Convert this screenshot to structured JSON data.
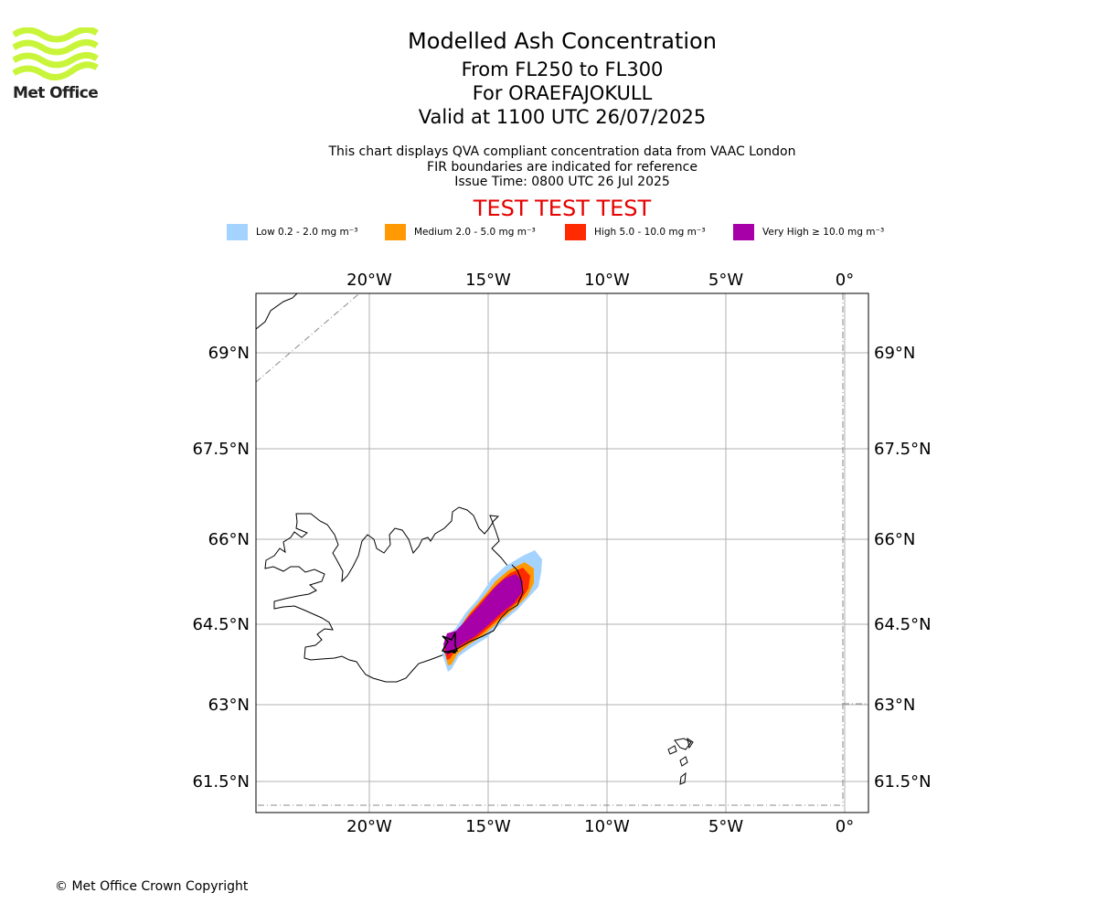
{
  "logo": {
    "text": "Met Office"
  },
  "header": {
    "title": "Modelled Ash Concentration",
    "levels": "From FL250 to FL300",
    "volcano": "For ORAEFAJOKULL",
    "valid": "Valid at 1100 UTC 26/07/2025"
  },
  "subtitle": {
    "line1": "This chart displays QVA compliant concentration data from VAAC London",
    "line2": "FIR boundaries are indicated for reference",
    "line3": "Issue Time: 0800 UTC 26 Jul 2025"
  },
  "test_banner": "TEST TEST TEST",
  "legend": [
    {
      "label": "Low 0.2 - 2.0 mg m⁻³",
      "color": "#a5d3ff"
    },
    {
      "label": "Medium 2.0 - 5.0 mg m⁻³",
      "color": "#ff9a05"
    },
    {
      "label": "High 5.0 - 10.0 mg m⁻³",
      "color": "#ff2a00"
    },
    {
      "label": "Very High ≥ 10.0 mg m⁻³",
      "color": "#a800a8"
    }
  ],
  "map": {
    "lon_ticks": [
      "20°W",
      "15°W",
      "10°W",
      "5°W",
      "0°"
    ],
    "lat_ticks": [
      "69°N",
      "67.5°N",
      "66°N",
      "64.5°N",
      "63°N",
      "61.5°N"
    ]
  },
  "footer": {
    "copyright": "© Met Office Crown Copyright"
  }
}
